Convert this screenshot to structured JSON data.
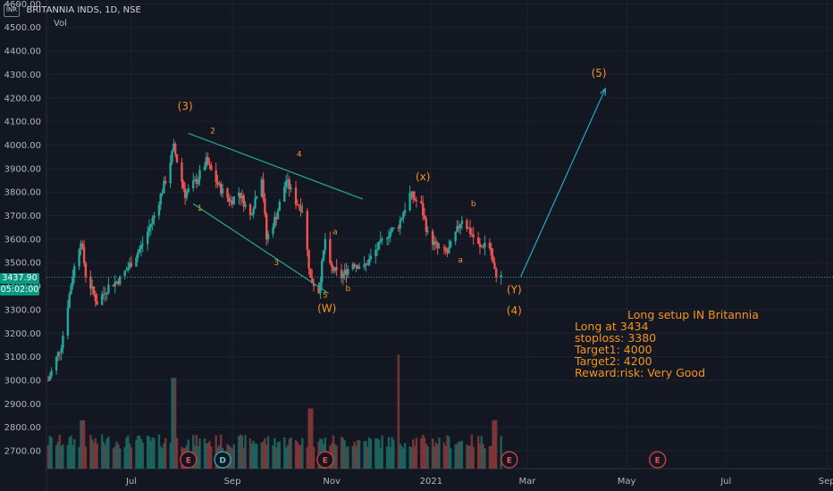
{
  "header": {
    "currency_badge": "INR",
    "symbol": "BRITANNIA INDS, 1D, NSE",
    "volume_label": "Vol"
  },
  "last_price": {
    "value": "3437.90",
    "countdown": "05:02:00"
  },
  "annotations": {
    "title": "Long setup IN Britannia",
    "lines": [
      "Long at 3434",
      "stoploss: 3380",
      "Target1: 4000",
      "Target2: 4200",
      "Reward:risk: Very Good"
    ]
  },
  "colors": {
    "background": "#131722",
    "up": "#26a69a",
    "down": "#ef5350",
    "wave_label": "#f7931a",
    "channel": "#22ab94",
    "projection": "#26a6c8",
    "grid": "#1e222d"
  },
  "chart_data": {
    "type": "candlestick",
    "ylim": [
      2650,
      4600
    ],
    "y_ticks": [
      "2700.00",
      "2800.00",
      "2900.00",
      "3000.00",
      "3100.00",
      "3200.00",
      "3300.00",
      "3400.00",
      "3500.00",
      "3600.00",
      "3700.00",
      "3800.00",
      "3900.00",
      "4000.00",
      "4100.00",
      "4200.00",
      "4300.00",
      "4400.00",
      "4500.00",
      "4600.00"
    ],
    "x_ticks": [
      "Jul",
      "Sep",
      "Nov",
      "2021",
      "Mar",
      "May",
      "Jul",
      "Sep"
    ],
    "close_path": [
      [
        "2020-05-20",
        3000
      ],
      [
        "2020-05-28",
        3150
      ],
      [
        "2020-06-04",
        3450
      ],
      [
        "2020-06-09",
        3600
      ],
      [
        "2020-06-12",
        3450
      ],
      [
        "2020-06-19",
        3330
      ],
      [
        "2020-06-26",
        3400
      ],
      [
        "2020-07-03",
        3430
      ],
      [
        "2020-07-10",
        3500
      ],
      [
        "2020-07-17",
        3580
      ],
      [
        "2020-07-24",
        3700
      ],
      [
        "2020-07-31",
        3850
      ],
      [
        "2020-08-05",
        3990
      ],
      [
        "2020-08-12",
        3790
      ],
      [
        "2020-08-19",
        3850
      ],
      [
        "2020-08-25",
        3930
      ],
      [
        "2020-09-02",
        3820
      ],
      [
        "2020-09-09",
        3760
      ],
      [
        "2020-09-14",
        3800
      ],
      [
        "2020-09-21",
        3700
      ],
      [
        "2020-09-28",
        3870
      ],
      [
        "2020-10-01",
        3600
      ],
      [
        "2020-10-07",
        3700
      ],
      [
        "2020-10-13",
        3850
      ],
      [
        "2020-10-19",
        3760
      ],
      [
        "2020-10-23",
        3730
      ],
      [
        "2020-10-28",
        3430
      ],
      [
        "2020-11-02",
        3380
      ],
      [
        "2020-11-06",
        3600
      ],
      [
        "2020-11-09",
        3480
      ],
      [
        "2020-11-16",
        3440
      ],
      [
        "2020-11-23",
        3500
      ],
      [
        "2020-11-30",
        3480
      ],
      [
        "2020-12-07",
        3550
      ],
      [
        "2020-12-14",
        3620
      ],
      [
        "2020-12-21",
        3660
      ],
      [
        "2020-12-28",
        3790
      ],
      [
        "2021-01-04",
        3740
      ],
      [
        "2021-01-08",
        3620
      ],
      [
        "2021-01-14",
        3560
      ],
      [
        "2021-01-20",
        3540
      ],
      [
        "2021-01-25",
        3620
      ],
      [
        "2021-01-29",
        3690
      ],
      [
        "2021-02-04",
        3620
      ],
      [
        "2021-02-09",
        3560
      ],
      [
        "2021-02-14",
        3600
      ],
      [
        "2021-02-18",
        3460
      ],
      [
        "2021-02-22",
        3438
      ]
    ],
    "volume_spikes": [
      [
        "2020-06-10",
        2830
      ],
      [
        "2020-08-05",
        3010
      ],
      [
        "2020-10-28",
        2880
      ],
      [
        "2020-12-20",
        3110
      ],
      [
        "2021-02-18",
        2830
      ]
    ],
    "volume_ylim": [
      2650,
      3200
    ],
    "earnings_markers": [
      {
        "date": "2020-08-05",
        "label": "E"
      },
      {
        "date": "2020-08-26",
        "label": "D"
      },
      {
        "date": "2020-10-28",
        "label": "E"
      },
      {
        "date": "2021-02-18",
        "label": "E"
      },
      {
        "date": "2021-05-20",
        "label": "E"
      }
    ],
    "wave_labels": [
      {
        "text": "(3)",
        "date": "2020-08-03",
        "price": 4150
      },
      {
        "text": "2",
        "date": "2020-08-20",
        "price": 4050
      },
      {
        "text": "4",
        "date": "2020-10-12",
        "price": 3950
      },
      {
        "text": "1",
        "date": "2020-08-12",
        "price": 3720
      },
      {
        "text": "3",
        "date": "2020-09-28",
        "price": 3490
      },
      {
        "text": "5",
        "date": "2020-10-28",
        "price": 3350
      },
      {
        "text": "(W)",
        "date": "2020-10-29",
        "price": 3290
      },
      {
        "text": "a",
        "date": "2020-11-03",
        "price": 3620
      },
      {
        "text": "b",
        "date": "2020-11-11",
        "price": 3380
      },
      {
        "text": "(x)",
        "date": "2020-12-27",
        "price": 3850
      },
      {
        "text": "a",
        "date": "2021-01-19",
        "price": 3500
      },
      {
        "text": "b",
        "date": "2021-01-27",
        "price": 3740
      },
      {
        "text": "(Y)",
        "date": "2021-02-21",
        "price": 3370
      },
      {
        "text": "(4)",
        "date": "2021-02-21",
        "price": 3280
      },
      {
        "text": "(5)",
        "date": "2021-04-14",
        "price": 4290
      }
    ],
    "channel_upper": [
      [
        "2020-08-05",
        4050
      ],
      [
        "2020-11-20",
        3770
      ]
    ],
    "channel_lower": [
      [
        "2020-08-08",
        3750
      ],
      [
        "2020-10-30",
        3370
      ]
    ],
    "projection": [
      [
        "2021-02-25",
        3440
      ],
      [
        "2021-04-18",
        4240
      ]
    ],
    "last_price_line": 3438
  }
}
